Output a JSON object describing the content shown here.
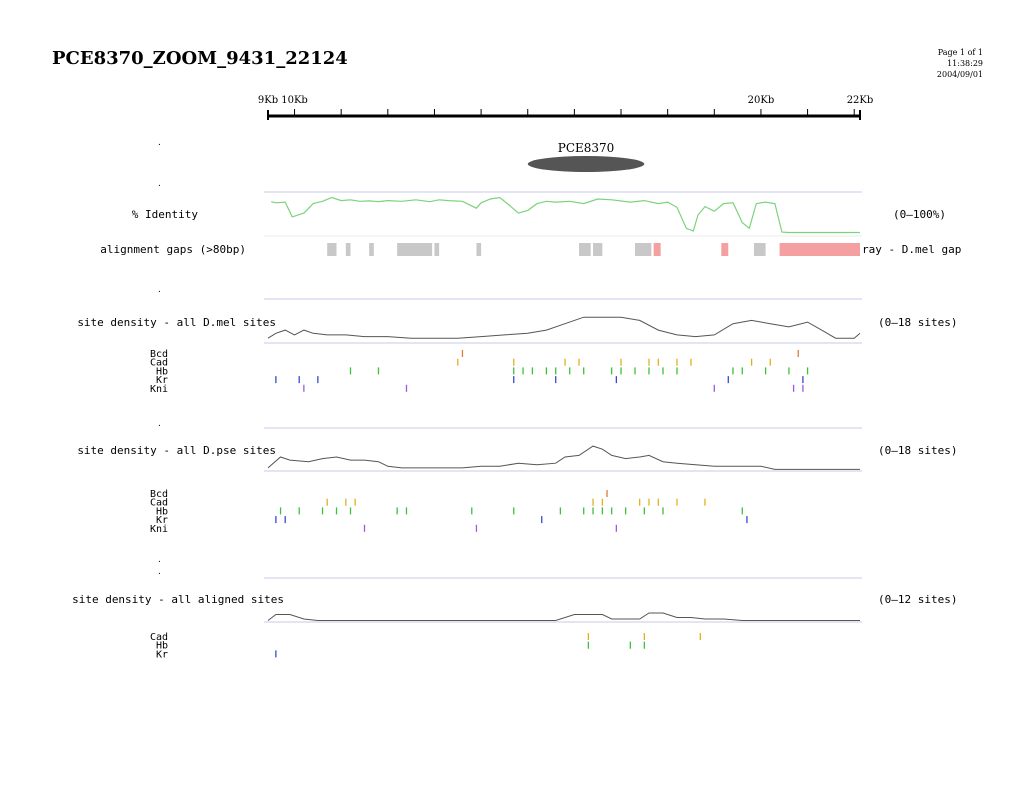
{
  "header": {
    "title": "PCE8370_ZOOM_9431_22124",
    "page": "Page 1 of 1",
    "time": "11:38:29",
    "date": "2004/09/01"
  },
  "ruler": {
    "start_kb": 9.431,
    "end_kb": 22.124,
    "labels": [
      {
        "text": "9Kb",
        "kb": 9.431
      },
      {
        "text": "10Kb",
        "kb": 10
      },
      {
        "text": "20Kb",
        "kb": 20
      },
      {
        "text": "22Kb",
        "kb": 22.124
      }
    ],
    "minor_ticks_kb": [
      10,
      11,
      12,
      13,
      14,
      15,
      16,
      17,
      18,
      19,
      20,
      21,
      22
    ]
  },
  "feature": {
    "label": "PCE8370",
    "start_kb": 15.0,
    "end_kb": 17.5
  },
  "identity": {
    "label": "% Identity",
    "range_label": "(0–100%)",
    "color": "#7dd27d",
    "points": [
      [
        9.5,
        85
      ],
      [
        9.6,
        82
      ],
      [
        9.8,
        84
      ],
      [
        9.95,
        45
      ],
      [
        10.2,
        55
      ],
      [
        10.4,
        80
      ],
      [
        10.6,
        86
      ],
      [
        10.8,
        96
      ],
      [
        11.0,
        88
      ],
      [
        11.2,
        90
      ],
      [
        11.4,
        86
      ],
      [
        11.6,
        87
      ],
      [
        11.8,
        85
      ],
      [
        12.0,
        88
      ],
      [
        12.3,
        86
      ],
      [
        12.6,
        90
      ],
      [
        12.9,
        85
      ],
      [
        13.1,
        90
      ],
      [
        13.3,
        88
      ],
      [
        13.6,
        86
      ],
      [
        13.9,
        68
      ],
      [
        14.0,
        82
      ],
      [
        14.2,
        92
      ],
      [
        14.4,
        96
      ],
      [
        14.6,
        76
      ],
      [
        14.8,
        55
      ],
      [
        15.0,
        62
      ],
      [
        15.2,
        80
      ],
      [
        15.4,
        86
      ],
      [
        15.6,
        84
      ],
      [
        15.9,
        86
      ],
      [
        16.2,
        80
      ],
      [
        16.5,
        92
      ],
      [
        16.8,
        90
      ],
      [
        17.2,
        84
      ],
      [
        17.5,
        88
      ],
      [
        17.8,
        80
      ],
      [
        18.0,
        84
      ],
      [
        18.2,
        70
      ],
      [
        18.4,
        15
      ],
      [
        18.55,
        8
      ],
      [
        18.65,
        50
      ],
      [
        18.8,
        72
      ],
      [
        19.0,
        60
      ],
      [
        19.2,
        80
      ],
      [
        19.4,
        82
      ],
      [
        19.6,
        30
      ],
      [
        19.75,
        15
      ],
      [
        19.9,
        80
      ],
      [
        20.1,
        84
      ],
      [
        20.3,
        80
      ],
      [
        20.45,
        5
      ],
      [
        20.6,
        4
      ],
      [
        22.124,
        4
      ]
    ]
  },
  "gaps": {
    "label": "alignment gaps (>80bp)",
    "legend_tail": "ray - D.mel gap",
    "gray": "#c8c8c8",
    "pink": "#f4a0a0",
    "segments": [
      {
        "start": 10.7,
        "end": 10.9,
        "kind": "gray"
      },
      {
        "start": 11.1,
        "end": 11.2,
        "kind": "gray"
      },
      {
        "start": 11.6,
        "end": 11.7,
        "kind": "gray"
      },
      {
        "start": 12.2,
        "end": 12.95,
        "kind": "gray"
      },
      {
        "start": 13.0,
        "end": 13.1,
        "kind": "gray"
      },
      {
        "start": 13.9,
        "end": 14.0,
        "kind": "gray"
      },
      {
        "start": 16.1,
        "end": 16.35,
        "kind": "gray"
      },
      {
        "start": 16.4,
        "end": 16.6,
        "kind": "gray"
      },
      {
        "start": 17.3,
        "end": 17.65,
        "kind": "gray"
      },
      {
        "start": 17.7,
        "end": 17.85,
        "kind": "pink"
      },
      {
        "start": 19.15,
        "end": 19.3,
        "kind": "pink"
      },
      {
        "start": 19.85,
        "end": 20.1,
        "kind": "gray"
      },
      {
        "start": 20.4,
        "end": 22.124,
        "kind": "pink"
      }
    ]
  },
  "tracks": [
    {
      "label": "site density - all D.mel sites",
      "range_label": "(0–18 sites)",
      "ymax": 18,
      "points": [
        [
          9.43,
          3
        ],
        [
          9.6,
          6
        ],
        [
          9.8,
          8
        ],
        [
          10.0,
          5
        ],
        [
          10.2,
          8
        ],
        [
          10.4,
          6
        ],
        [
          10.7,
          5
        ],
        [
          11.1,
          5
        ],
        [
          11.5,
          4
        ],
        [
          12.0,
          4
        ],
        [
          12.5,
          3
        ],
        [
          13.0,
          3
        ],
        [
          13.5,
          3
        ],
        [
          14.0,
          4
        ],
        [
          14.5,
          5
        ],
        [
          15.0,
          6
        ],
        [
          15.4,
          8
        ],
        [
          15.8,
          12
        ],
        [
          16.2,
          16
        ],
        [
          16.6,
          16
        ],
        [
          17.0,
          16
        ],
        [
          17.4,
          14
        ],
        [
          17.8,
          8
        ],
        [
          18.2,
          5
        ],
        [
          18.6,
          4
        ],
        [
          19.0,
          5
        ],
        [
          19.4,
          12
        ],
        [
          19.8,
          14
        ],
        [
          20.2,
          12
        ],
        [
          20.6,
          10
        ],
        [
          21.0,
          13
        ],
        [
          21.3,
          8
        ],
        [
          21.6,
          3
        ],
        [
          22.0,
          3
        ],
        [
          22.124,
          6
        ]
      ],
      "sites": [
        {
          "name": "Bcd",
          "color": "#e07a3a",
          "kb": [
            13.6,
            20.8
          ]
        },
        {
          "name": "Cad",
          "color": "#e0b020",
          "kb": [
            13.5,
            14.7,
            15.8,
            16.1,
            17.0,
            17.6,
            17.8,
            18.2,
            18.5,
            19.8,
            20.2
          ]
        },
        {
          "name": "Hb",
          "color": "#3ec03e",
          "kb": [
            11.2,
            11.8,
            14.7,
            14.9,
            15.1,
            15.4,
            15.6,
            15.9,
            16.2,
            16.8,
            17.0,
            17.3,
            17.6,
            17.9,
            18.2,
            19.4,
            19.6,
            20.1,
            20.6,
            21.0
          ]
        },
        {
          "name": "Kr",
          "color": "#3a48c8",
          "kb": [
            9.6,
            10.1,
            10.5,
            14.7,
            15.6,
            16.9,
            19.3,
            20.9
          ]
        },
        {
          "name": "Kni",
          "color": "#9a5ae0",
          "kb": [
            10.2,
            12.4,
            19.0,
            20.7,
            20.9
          ]
        }
      ]
    },
    {
      "label": "site density - all D.pse sites",
      "range_label": "(0–18 sites)",
      "ymax": 18,
      "points": [
        [
          9.43,
          2
        ],
        [
          9.7,
          9
        ],
        [
          9.9,
          7
        ],
        [
          10.3,
          6
        ],
        [
          10.6,
          8
        ],
        [
          10.9,
          9
        ],
        [
          11.2,
          7
        ],
        [
          11.5,
          7
        ],
        [
          11.8,
          6
        ],
        [
          12.0,
          3
        ],
        [
          12.3,
          2
        ],
        [
          13.0,
          2
        ],
        [
          13.6,
          2
        ],
        [
          14.0,
          3
        ],
        [
          14.4,
          3
        ],
        [
          14.8,
          5
        ],
        [
          15.2,
          4
        ],
        [
          15.6,
          5
        ],
        [
          15.8,
          9
        ],
        [
          16.1,
          10
        ],
        [
          16.4,
          16
        ],
        [
          16.6,
          14
        ],
        [
          16.8,
          10
        ],
        [
          17.1,
          8
        ],
        [
          17.4,
          9
        ],
        [
          17.6,
          10
        ],
        [
          17.9,
          6
        ],
        [
          18.2,
          5
        ],
        [
          18.6,
          4
        ],
        [
          19.0,
          3
        ],
        [
          19.4,
          3
        ],
        [
          20.0,
          3
        ],
        [
          20.3,
          1
        ],
        [
          20.6,
          1
        ],
        [
          22.124,
          1
        ]
      ],
      "sites": [
        {
          "name": "Bcd",
          "color": "#e07a3a",
          "kb": [
            16.7
          ]
        },
        {
          "name": "Cad",
          "color": "#e0b020",
          "kb": [
            10.7,
            11.1,
            11.3,
            16.4,
            16.6,
            17.4,
            17.6,
            17.8,
            18.2,
            18.8
          ]
        },
        {
          "name": "Hb",
          "color": "#3ec03e",
          "kb": [
            9.7,
            10.1,
            10.6,
            10.9,
            11.2,
            12.2,
            12.4,
            13.8,
            14.7,
            15.7,
            16.2,
            16.4,
            16.6,
            16.8,
            17.1,
            17.5,
            17.9,
            19.6
          ]
        },
        {
          "name": "Kr",
          "color": "#3a48c8",
          "kb": [
            9.6,
            9.8,
            15.3,
            19.7
          ]
        },
        {
          "name": "Kni",
          "color": "#9a5ae0",
          "kb": [
            11.5,
            13.9,
            16.9
          ]
        }
      ]
    },
    {
      "label": "site density - all aligned sites",
      "range_label": "(0–12 sites)",
      "ymax": 12,
      "points": [
        [
          9.43,
          1
        ],
        [
          9.6,
          5
        ],
        [
          9.9,
          5
        ],
        [
          10.2,
          2
        ],
        [
          10.5,
          1
        ],
        [
          11.0,
          1
        ],
        [
          12.0,
          1
        ],
        [
          13.0,
          1
        ],
        [
          14.0,
          1
        ],
        [
          15.0,
          1
        ],
        [
          15.6,
          1
        ],
        [
          16.0,
          5
        ],
        [
          16.4,
          5
        ],
        [
          16.6,
          5
        ],
        [
          16.8,
          2
        ],
        [
          17.1,
          2
        ],
        [
          17.4,
          2
        ],
        [
          17.6,
          6
        ],
        [
          17.9,
          6
        ],
        [
          18.2,
          3
        ],
        [
          18.5,
          3
        ],
        [
          18.8,
          2
        ],
        [
          19.2,
          2
        ],
        [
          19.6,
          1
        ],
        [
          20.0,
          1
        ],
        [
          21.0,
          1
        ],
        [
          22.124,
          1
        ]
      ],
      "sites": [
        {
          "name": "Cad",
          "color": "#e0b020",
          "kb": [
            16.3,
            17.5,
            18.7
          ]
        },
        {
          "name": "Hb",
          "color": "#3ec03e",
          "kb": [
            16.3,
            17.2,
            17.5
          ]
        },
        {
          "name": "Kr",
          "color": "#3a48c8",
          "kb": [
            9.6
          ]
        }
      ]
    }
  ]
}
